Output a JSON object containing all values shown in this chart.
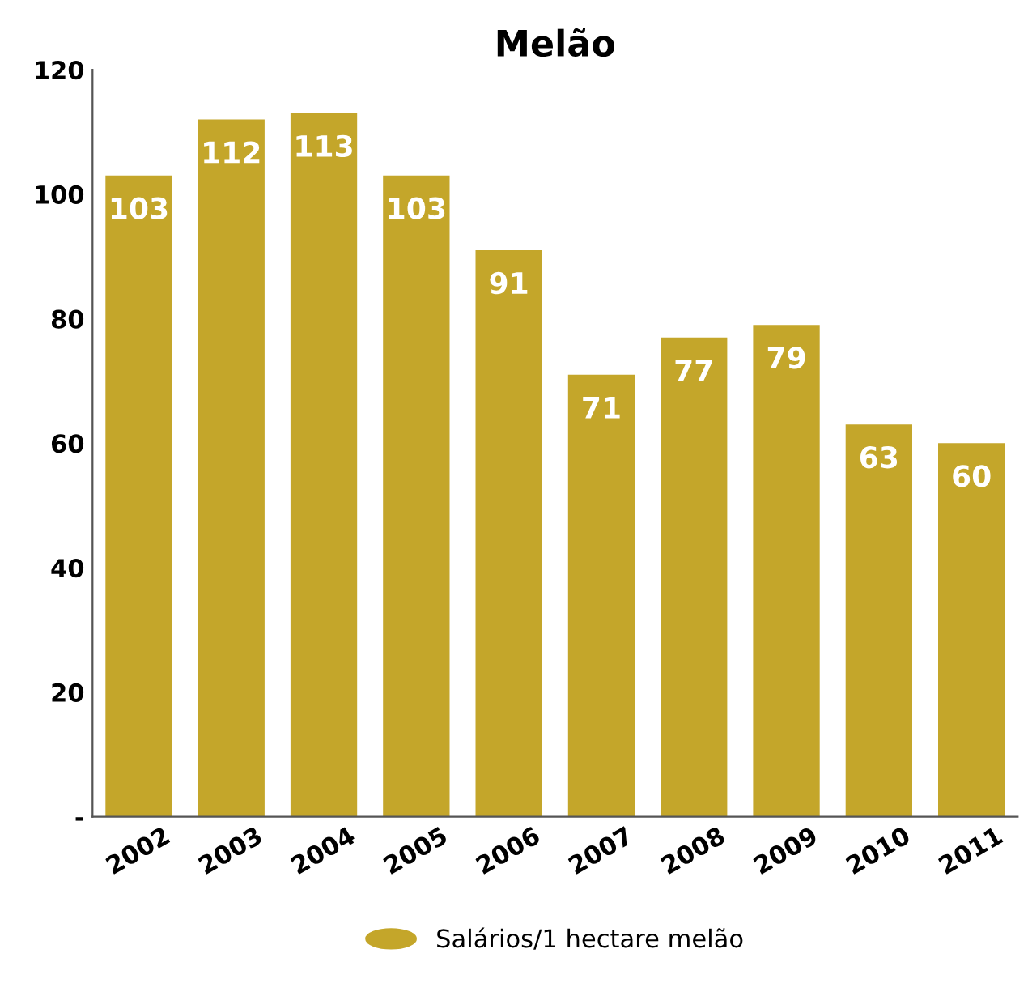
{
  "chart_data": {
    "type": "bar",
    "title": "Melão",
    "categories": [
      "2002",
      "2003",
      "2004",
      "2005",
      "2006",
      "2007",
      "2008",
      "2009",
      "2010",
      "2011"
    ],
    "series": [
      {
        "name": "Salários/1 hectare melão",
        "color": "#c4a62a",
        "values": [
          103,
          112,
          113,
          103,
          91,
          71,
          77,
          79,
          63,
          60
        ]
      }
    ],
    "data_labels": true,
    "ylim": [
      0,
      120
    ],
    "yticks": [
      {
        "value": 0,
        "label": "-"
      },
      20,
      40,
      60,
      80,
      100,
      120
    ],
    "grid": false,
    "legend": "bottom"
  }
}
